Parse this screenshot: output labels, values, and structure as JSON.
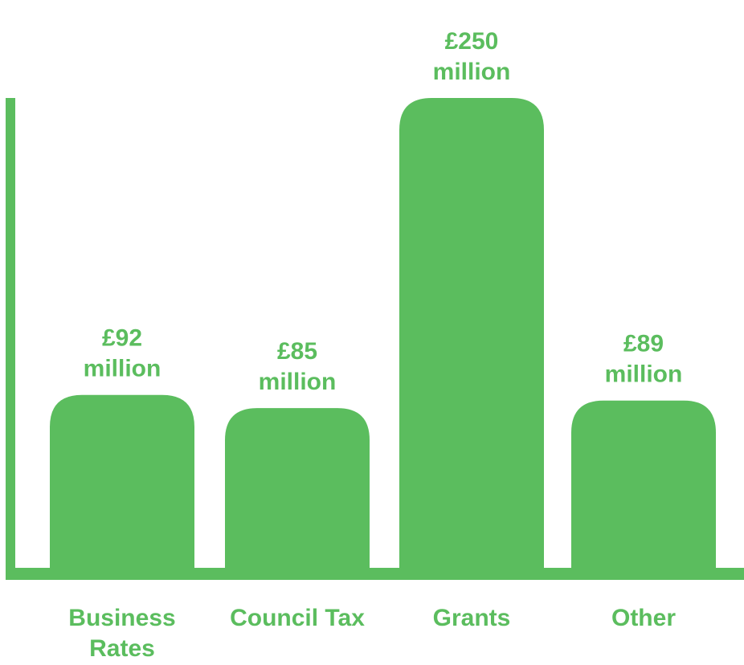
{
  "chart_data": {
    "type": "bar",
    "categories": [
      [
        "Business",
        "Rates"
      ],
      [
        "Council Tax"
      ],
      [
        "Grants"
      ],
      [
        "Other"
      ]
    ],
    "values": [
      92,
      85,
      250,
      89
    ],
    "data_labels": [
      [
        "£92",
        "million"
      ],
      [
        "£85",
        "million"
      ],
      [
        "£250",
        "million"
      ],
      [
        "£89",
        "million"
      ]
    ],
    "title": "",
    "xlabel": "",
    "ylabel": "",
    "ylim": [
      0,
      250
    ],
    "grid": false,
    "legend": "none",
    "bar_color": "#5bbd5e",
    "axis_color": "#5bbd5e",
    "label_color": "#5bbd5e"
  }
}
